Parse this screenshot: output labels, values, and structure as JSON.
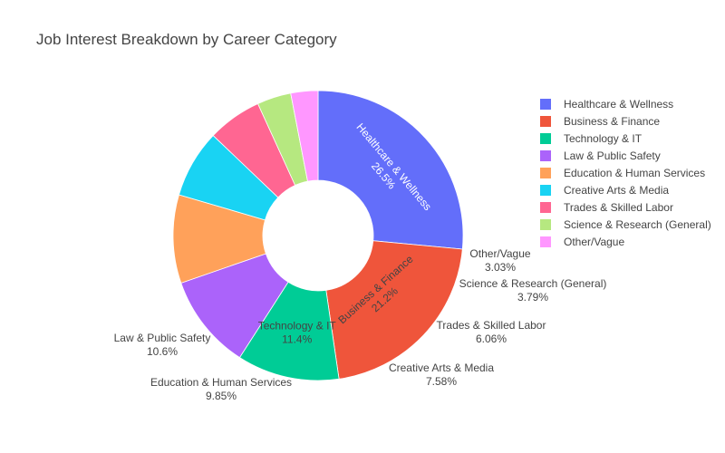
{
  "chart_data": {
    "type": "pie",
    "hole": true,
    "title": "Job Interest Breakdown by Career Category",
    "legend_position": "right",
    "slices": [
      {
        "label": "Healthcare & Wellness",
        "value": 26.5,
        "percent_text": "26.5%",
        "color": "#636efa",
        "label_position": "inside",
        "label_color": "#ffffff"
      },
      {
        "label": "Business & Finance",
        "value": 21.2,
        "percent_text": "21.2%",
        "color": "#ef553b",
        "label_position": "inside",
        "label_color": "#444444"
      },
      {
        "label": "Technology & IT",
        "value": 11.4,
        "percent_text": "11.4%",
        "color": "#00cc96",
        "label_position": "inside",
        "label_color": "#444444"
      },
      {
        "label": "Law & Public Safety",
        "value": 10.6,
        "percent_text": "10.6%",
        "color": "#ab63fa",
        "label_position": "outside",
        "label_color": "#444444"
      },
      {
        "label": "Education & Human Services",
        "value": 9.85,
        "percent_text": "9.85%",
        "color": "#ffa15a",
        "label_position": "outside",
        "label_color": "#444444"
      },
      {
        "label": "Creative Arts & Media",
        "value": 7.58,
        "percent_text": "7.58%",
        "color": "#19d3f3",
        "label_position": "outside",
        "label_color": "#444444"
      },
      {
        "label": "Trades & Skilled Labor",
        "value": 6.06,
        "percent_text": "6.06%",
        "color": "#ff6692",
        "label_position": "outside",
        "label_color": "#444444"
      },
      {
        "label": "Science & Research (General)",
        "value": 3.79,
        "percent_text": "3.79%",
        "color": "#b6e880",
        "label_position": "outside",
        "label_color": "#444444"
      },
      {
        "label": "Other/Vague",
        "value": 3.03,
        "percent_text": "3.03%",
        "color": "#ff97ff",
        "label_position": "outside",
        "label_color": "#444444"
      }
    ]
  }
}
